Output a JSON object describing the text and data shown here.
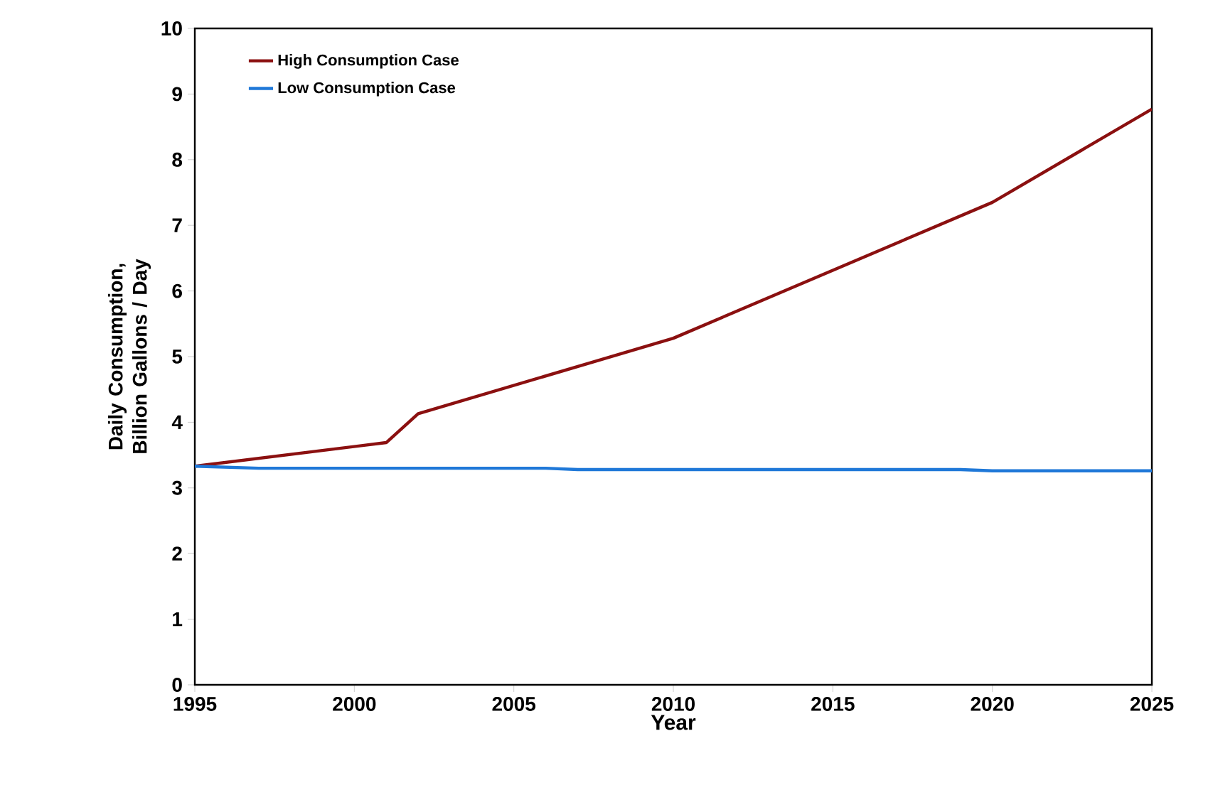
{
  "chart_data": {
    "type": "line",
    "xlabel": "Year",
    "ylabel": "Daily Consumption,\nBillion Gallons / Day",
    "xlim": [
      1995,
      2025
    ],
    "xticks": [
      1995,
      2000,
      2005,
      2010,
      2015,
      2020,
      2025
    ],
    "ylim": [
      0,
      10
    ],
    "yticks": [
      0,
      1,
      2,
      3,
      4,
      5,
      6,
      7,
      8,
      9,
      10
    ],
    "grid": false,
    "legend": "top left",
    "marker": "none",
    "line_style": "solid",
    "series": [
      {
        "name": "High Consumption Case",
        "color": "#8b1010",
        "x": [
          1995,
          2001,
          2002,
          2010,
          2020,
          2025
        ],
        "values": [
          3.33,
          3.69,
          4.13,
          5.28,
          7.35,
          8.77
        ]
      },
      {
        "name": "Low Consumption Case",
        "color": "#1f78d8",
        "x": [
          1995,
          1997,
          2006,
          2007,
          2019,
          2020,
          2025
        ],
        "values": [
          3.33,
          3.3,
          3.3,
          3.28,
          3.28,
          3.26,
          3.26
        ]
      }
    ]
  }
}
